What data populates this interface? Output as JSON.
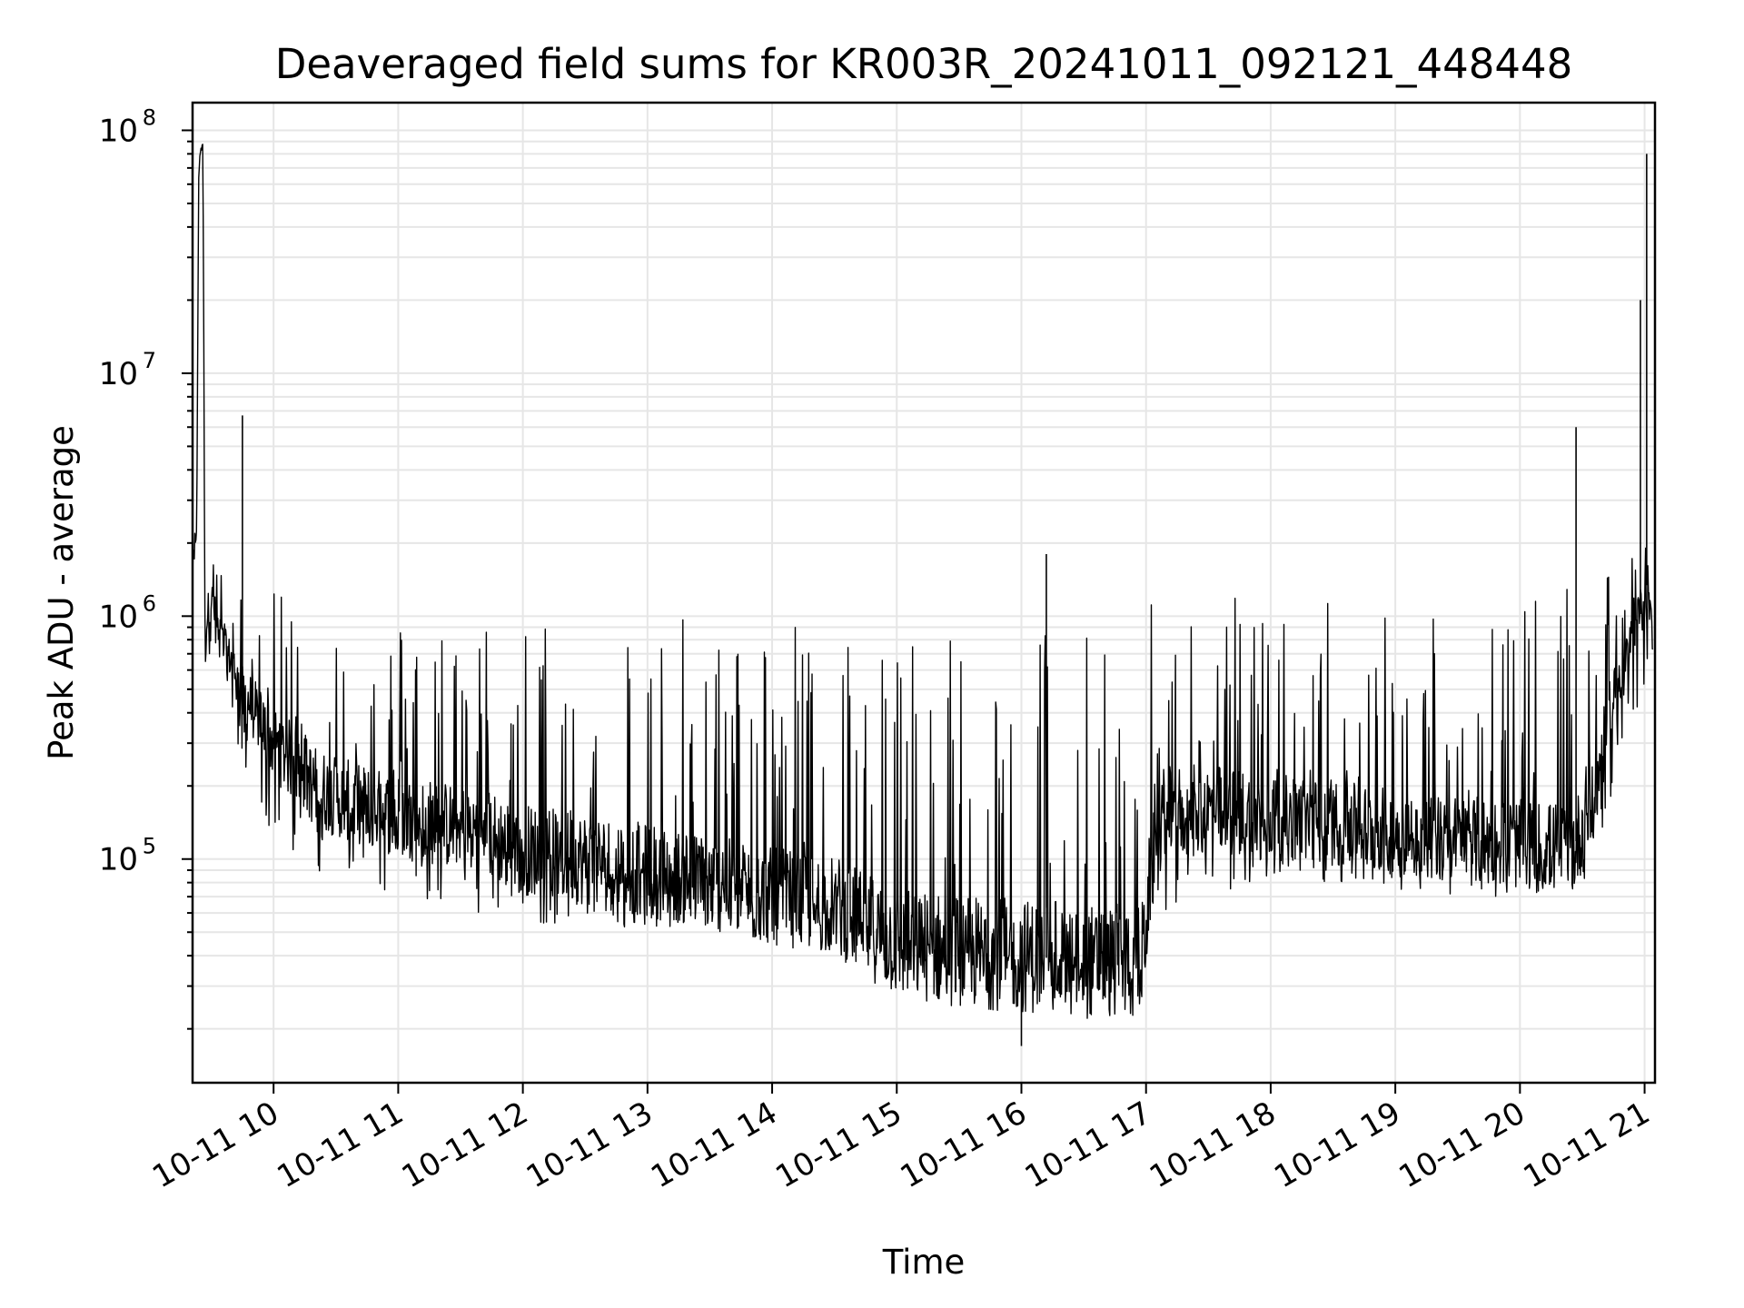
{
  "chart_data": {
    "type": "line",
    "title": "Deaveraged field sums for KR003R_20241011_092121_448448",
    "xlabel": "Time",
    "ylabel": "Peak ADU - average",
    "yscale": "log",
    "ylim": [
      12000,
      130000000
    ],
    "xlim": [
      "2024-10-11 09:21",
      "2024-10-11 21:05"
    ],
    "grid": true,
    "colors": {
      "line": "#000000",
      "grid": "#e6e6e6",
      "axis": "#000000"
    },
    "x_ticks": [
      {
        "t": "2024-10-11 10:00",
        "label": "10-11 10"
      },
      {
        "t": "2024-10-11 11:00",
        "label": "10-11 11"
      },
      {
        "t": "2024-10-11 12:00",
        "label": "10-11 12"
      },
      {
        "t": "2024-10-11 13:00",
        "label": "10-11 13"
      },
      {
        "t": "2024-10-11 14:00",
        "label": "10-11 14"
      },
      {
        "t": "2024-10-11 15:00",
        "label": "10-11 15"
      },
      {
        "t": "2024-10-11 16:00",
        "label": "10-11 16"
      },
      {
        "t": "2024-10-11 17:00",
        "label": "10-11 17"
      },
      {
        "t": "2024-10-11 18:00",
        "label": "10-11 18"
      },
      {
        "t": "2024-10-11 19:00",
        "label": "10-11 19"
      },
      {
        "t": "2024-10-11 20:00",
        "label": "10-11 20"
      },
      {
        "t": "2024-10-11 21:00",
        "label": "10-11 21"
      }
    ],
    "y_ticks": [
      {
        "value": 100000,
        "base": "10",
        "exp": "5"
      },
      {
        "value": 1000000,
        "base": "10",
        "exp": "6"
      },
      {
        "value": 10000000,
        "base": "10",
        "exp": "7"
      },
      {
        "value": 100000000,
        "base": "10",
        "exp": "8"
      }
    ],
    "series": [
      {
        "x": [
          "2024-10-11 09:21",
          "2024-10-11 09:23",
          "2024-10-11 09:24",
          "2024-10-11 09:25",
          "2024-10-11 09:26",
          "2024-10-11 09:27",
          "2024-10-11 09:28",
          "2024-10-11 09:30",
          "2024-10-11 09:32",
          "2024-10-11 09:35",
          "2024-10-11 09:38",
          "2024-10-11 09:40",
          "2024-10-11 09:44",
          "2024-10-11 09:48",
          "2024-10-11 09:55",
          "2024-10-11 10:00",
          "2024-10-11 10:10",
          "2024-10-11 10:20",
          "2024-10-11 10:30",
          "2024-10-11 10:40",
          "2024-10-11 10:50",
          "2024-10-11 11:00",
          "2024-10-11 11:20",
          "2024-10-11 11:40",
          "2024-10-11 12:00",
          "2024-10-11 12:30",
          "2024-10-11 13:00",
          "2024-10-11 13:30",
          "2024-10-11 14:00",
          "2024-10-11 14:30",
          "2024-10-11 15:00",
          "2024-10-11 15:30",
          "2024-10-11 16:00",
          "2024-10-11 16:30",
          "2024-10-11 16:58",
          "2024-10-11 17:05",
          "2024-10-11 17:30",
          "2024-10-11 18:00",
          "2024-10-11 18:30",
          "2024-10-11 19:00",
          "2024-10-11 19:30",
          "2024-10-11 20:00",
          "2024-10-11 20:25",
          "2024-10-11 20:35",
          "2024-10-11 20:45",
          "2024-10-11 20:55",
          "2024-10-11 21:00",
          "2024-10-11 21:02",
          "2024-10-11 21:04"
        ],
        "lower": [
          900000,
          1200000,
          65000000,
          80000000,
          85000000,
          320000,
          600000,
          700000,
          600000,
          450000,
          400000,
          350000,
          250000,
          200000,
          150000,
          120000,
          100000,
          90000,
          85000,
          80000,
          75000,
          70000,
          65000,
          60000,
          55000,
          52000,
          50000,
          48000,
          45000,
          42000,
          30000,
          28000,
          27000,
          26000,
          26000,
          60000,
          70000,
          75000,
          80000,
          75000,
          70000,
          70000,
          70000,
          90000,
          200000,
          350000,
          400000,
          600000,
          500000
        ],
        "median": [
          1500000,
          2500000,
          70000000,
          85000000,
          88000000,
          700000,
          1000000,
          1200000,
          1000000,
          800000,
          700000,
          650000,
          500000,
          450000,
          350000,
          300000,
          250000,
          200000,
          180000,
          170000,
          160000,
          150000,
          140000,
          130000,
          110000,
          100000,
          90000,
          80000,
          70000,
          65000,
          45000,
          42000,
          40000,
          38000,
          38000,
          150000,
          160000,
          150000,
          140000,
          130000,
          120000,
          115000,
          110000,
          160000,
          500000,
          800000,
          1200000,
          1500000,
          700000
        ],
        "upper": [
          2500000,
          3500000,
          75000000,
          88000000,
          90000000,
          1200000,
          2000000,
          2500000,
          2000000,
          1500000,
          1400000,
          1300000,
          1300000,
          1300000,
          1250000,
          1250000,
          1200000,
          1150000,
          1100000,
          1050000,
          1000000,
          1000000,
          1000000,
          1000000,
          1000000,
          1000000,
          1000000,
          1000000,
          1000000,
          1000000,
          1000000,
          1000000,
          1000000,
          1000000,
          1000000,
          1300000,
          1300000,
          1200000,
          1200000,
          1200000,
          1200000,
          1200000,
          1300000,
          1400000,
          1500000,
          1800000,
          2000000,
          1800000,
          1000000
        ]
      }
    ],
    "spikes": [
      {
        "t": "2024-10-11 09:45",
        "value": 6700000
      },
      {
        "t": "2024-10-11 16:12",
        "value": 1800000
      },
      {
        "t": "2024-10-11 20:27",
        "value": 6000000
      },
      {
        "t": "2024-10-11 20:58",
        "value": 20000000
      },
      {
        "t": "2024-10-11 21:01",
        "value": 80000000
      },
      {
        "t": "2024-10-11 16:00",
        "value": 17000
      }
    ]
  }
}
